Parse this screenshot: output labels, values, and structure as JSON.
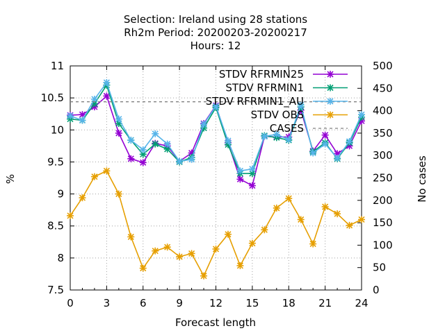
{
  "chart_data": {
    "type": "line",
    "title_lines": [
      "Selection: Ireland using    28 stations",
      "Rh2m   Period: 20200203-20200217",
      "Hours:  12"
    ],
    "xlabel": "Forecast length",
    "ylabel": "%",
    "y2label": "No cases",
    "xlim": [
      0,
      24
    ],
    "ylim": [
      7.5,
      11
    ],
    "y2lim": [
      0,
      500
    ],
    "xticks": [
      0,
      3,
      6,
      9,
      12,
      15,
      18,
      21,
      24
    ],
    "yticks": [
      7.5,
      8,
      8.5,
      9,
      9.5,
      10,
      10.5,
      11
    ],
    "y2ticks": [
      0,
      50,
      100,
      150,
      200,
      250,
      300,
      350,
      400,
      450,
      500
    ],
    "legend_position": "top-right",
    "x": [
      0,
      1,
      2,
      3,
      4,
      5,
      6,
      7,
      8,
      9,
      10,
      11,
      12,
      13,
      14,
      15,
      16,
      17,
      18,
      19,
      20,
      21,
      22,
      23,
      24
    ],
    "series": [
      {
        "name": "STDV RFRMIN25",
        "color": "#9400d3",
        "axis": "y",
        "values": [
          10.23,
          10.24,
          10.36,
          10.53,
          9.95,
          9.55,
          9.49,
          9.79,
          9.75,
          9.51,
          9.64,
          10.1,
          10.38,
          9.8,
          9.23,
          9.13,
          9.9,
          9.89,
          9.89,
          10.31,
          9.67,
          9.92,
          9.63,
          9.75,
          10.14
        ]
      },
      {
        "name": "STDV RFRMIN1",
        "color": "#009e73",
        "axis": "y",
        "values": [
          10.17,
          10.15,
          10.41,
          10.7,
          10.1,
          9.84,
          9.62,
          9.78,
          9.7,
          9.5,
          9.57,
          10.03,
          10.35,
          9.77,
          9.32,
          9.32,
          9.91,
          9.88,
          9.84,
          10.36,
          9.66,
          9.8,
          9.55,
          9.8,
          10.2
        ]
      },
      {
        "name": "STDV RFRMIN1_AU",
        "color": "#56b4e9",
        "axis": "y",
        "values": [
          10.22,
          10.15,
          10.48,
          10.74,
          10.17,
          9.84,
          9.69,
          9.94,
          9.78,
          9.51,
          9.54,
          10.09,
          10.37,
          9.83,
          9.36,
          9.39,
          9.9,
          9.93,
          9.85,
          10.39,
          9.64,
          9.78,
          9.56,
          9.82,
          10.24
        ]
      },
      {
        "name": "STDV OBS",
        "color": "#e69f00",
        "axis": "y",
        "values": [
          8.66,
          8.94,
          9.27,
          9.36,
          9.0,
          8.33,
          7.84,
          8.11,
          8.17,
          8.02,
          8.07,
          7.72,
          8.14,
          8.37,
          7.88,
          8.23,
          8.44,
          8.78,
          8.93,
          8.6,
          8.22,
          8.8,
          8.69,
          8.51,
          8.6
        ]
      },
      {
        "name": "CASES",
        "color": "#808080",
        "axis": "y2",
        "dashed": true,
        "values": [
          420,
          420,
          420,
          420,
          420,
          420,
          420,
          420,
          420,
          420,
          420,
          420,
          420,
          420,
          420,
          420,
          420,
          420,
          420,
          420,
          420,
          420,
          420,
          420,
          420
        ]
      }
    ]
  }
}
